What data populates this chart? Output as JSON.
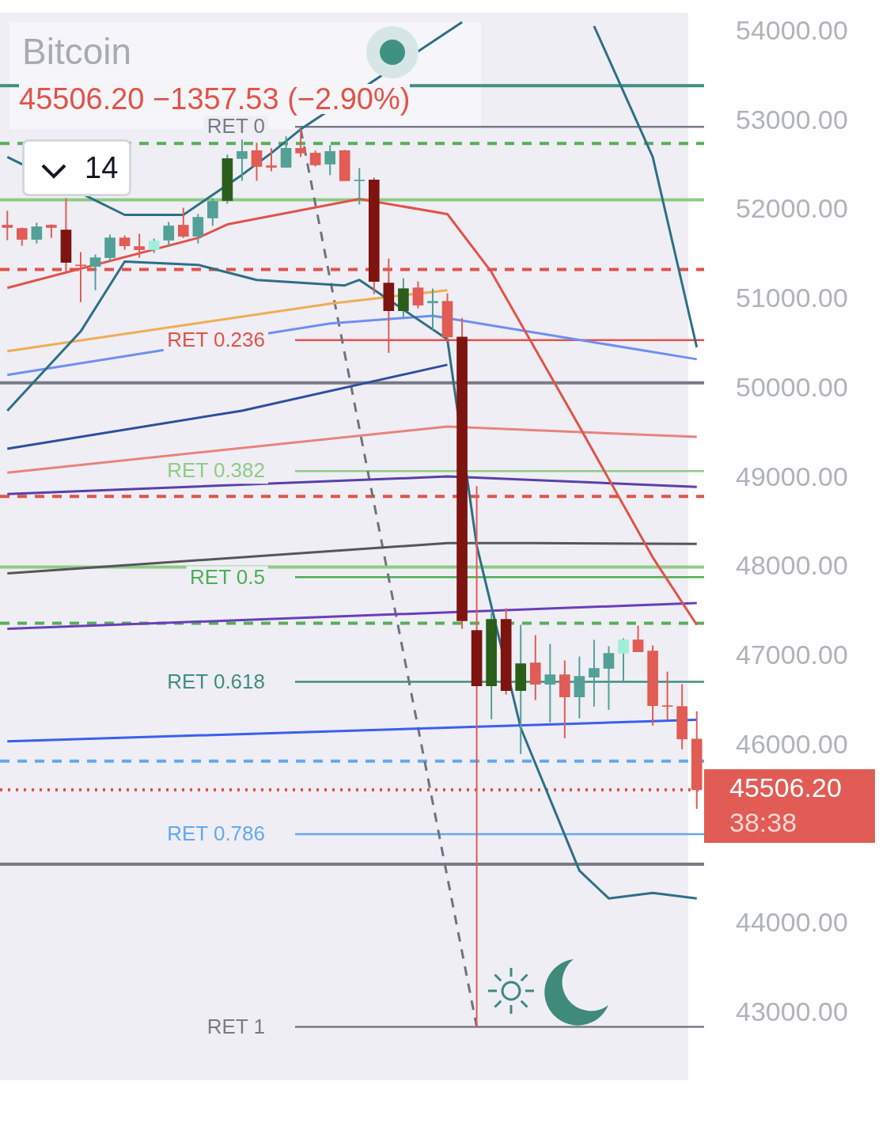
{
  "chart_data": {
    "type": "candlestick",
    "title": "Bitcoin",
    "subtitle": "45506.20 −1357.53 (−2.90%)",
    "categories": [
      null,
      null,
      null,
      null,
      null,
      null,
      null,
      null,
      null,
      null,
      null,
      null,
      null,
      null,
      null,
      null,
      null,
      null,
      null,
      null,
      null,
      null,
      null,
      null,
      null,
      null,
      null,
      null,
      null,
      null,
      null,
      null,
      null,
      null,
      null,
      null,
      null,
      null,
      null,
      null,
      null,
      null,
      null,
      null,
      null,
      null,
      null,
      null
    ],
    "ohlc": [
      [
        51836,
        51996,
        51667,
        51809
      ],
      [
        51800,
        51809,
        51604,
        51676
      ],
      [
        51676,
        51862,
        51631,
        51818
      ],
      [
        51836,
        51844,
        51693,
        51809
      ],
      [
        51782,
        52140,
        51310,
        51418
      ],
      [
        51390,
        51533,
        50973,
        51380
      ],
      [
        51373,
        51507,
        51107,
        51471
      ],
      [
        51471,
        51729,
        51427,
        51693
      ],
      [
        51693,
        51720,
        51560,
        51604
      ],
      [
        51596,
        51738,
        51471,
        51560
      ],
      [
        51560,
        51684,
        51524,
        51658
      ],
      [
        51667,
        51871,
        51596,
        51827
      ],
      [
        51836,
        52031,
        51693,
        51711
      ],
      [
        51711,
        51960,
        51631,
        51924
      ],
      [
        51916,
        52138,
        51827,
        52102
      ],
      [
        52111,
        52627,
        52076,
        52582
      ],
      [
        52582,
        52796,
        52333,
        52662
      ],
      [
        52671,
        52760,
        52333,
        52493
      ],
      [
        52502,
        52698,
        52440,
        52484
      ],
      [
        52484,
        52831,
        52484,
        52698
      ],
      [
        52698,
        52911,
        52600,
        52644
      ],
      [
        52644,
        52671,
        52493,
        52511
      ],
      [
        52520,
        52733,
        52396,
        52662
      ],
      [
        52671,
        52680,
        52333,
        52333
      ],
      [
        52333,
        52476,
        52067,
        52342
      ],
      [
        52342,
        52369,
        51062,
        51204
      ],
      [
        51187,
        51462,
        50404,
        50876
      ],
      [
        50876,
        51240,
        50804,
        51124
      ],
      [
        51133,
        51204,
        50902,
        50938
      ],
      [
        50964,
        51124,
        50662,
        50982
      ],
      [
        50982,
        51071,
        50529,
        50582
      ],
      [
        50582,
        50796,
        47311,
        47400
      ],
      [
        47293,
        48911,
        42849,
        46671
      ],
      [
        46671,
        47489,
        46298,
        47418
      ],
      [
        47418,
        47542,
        46573,
        46618
      ],
      [
        46618,
        47356,
        45907,
        46920
      ],
      [
        46929,
        47240,
        46511,
        46689
      ],
      [
        46689,
        47142,
        46262,
        46796
      ],
      [
        46796,
        46956,
        46084,
        46547
      ],
      [
        46547,
        47000,
        46307,
        46778
      ],
      [
        46769,
        47187,
        46440,
        46867
      ],
      [
        46867,
        47116,
        46404,
        47036
      ],
      [
        47036,
        47204,
        46707,
        47187
      ],
      [
        47187,
        47347,
        47053,
        47053
      ],
      [
        47062,
        47124,
        46227,
        46449
      ],
      [
        46449,
        46831,
        46289,
        46440
      ],
      [
        46440,
        46689,
        45960,
        46076
      ],
      [
        46076,
        46387,
        45293,
        45506.2
      ]
    ],
    "colors": [
      "#e05c54",
      "#e05c54",
      "#53a096",
      "#e05c54",
      "#7d1410",
      "#e05c54",
      "#53a096",
      "#53a096",
      "#e05c54",
      "#e05c54",
      "#9eeeda",
      "#53a096",
      "#e05c54",
      "#53a096",
      "#53a096",
      "#2a5e1a",
      "#53a096",
      "#e05c54",
      "#e05c54",
      "#53a096",
      "#e05c54",
      "#e05c54",
      "#53a096",
      "#e05c54",
      "#53a096",
      "#7d1410",
      "#7d1410",
      "#2a5e1a",
      "#e05c54",
      "#53a096",
      "#e05c54",
      "#7d1410",
      "#7d1410",
      "#2a5e1a",
      "#7d1410",
      "#2a5e1a",
      "#e05c54",
      "#53a096",
      "#e05c54",
      "#53a096",
      "#53a096",
      "#53a096",
      "#9eeeda",
      "#e05c54",
      "#e05c54",
      "#e05c54",
      "#e05c54",
      "#e05c54"
    ],
    "series": [
      {
        "type": "line",
        "color": "#e0534a",
        "values": [
          51133,
          null,
          null,
          null,
          null,
          null,
          null,
          null,
          null,
          null,
          null,
          null,
          null,
          51693,
          null,
          51844,
          null,
          null,
          null,
          null,
          null,
          null,
          null,
          null,
          52129,
          null,
          null,
          null,
          null,
          null,
          51960,
          null,
          null,
          51311,
          null,
          null,
          null,
          null,
          null,
          49578,
          null,
          null,
          null,
          null,
          48111,
          null,
          null,
          47356
        ]
      },
      {
        "type": "line",
        "color": "#2e6f86",
        "values": [
          52600,
          null,
          null,
          null,
          null,
          null,
          null,
          null,
          51951,
          null,
          null,
          null,
          51951,
          null,
          null,
          null,
          52400,
          null,
          52644,
          null,
          52911,
          null,
          null,
          null,
          null,
          null,
          null,
          null,
          null,
          null,
          null,
          54111,
          null,
          null,
          null,
          null,
          null,
          null,
          null,
          null,
          null,
          null,
          null,
          null,
          null,
          null,
          null,
          null
        ]
      },
      {
        "type": "line",
        "color": "#2e6f86",
        "values": [
          null,
          null,
          null,
          null,
          null,
          null,
          null,
          null,
          null,
          null,
          null,
          null,
          null,
          null,
          null,
          null,
          null,
          null,
          null,
          null,
          null,
          null,
          null,
          null,
          null,
          null,
          null,
          null,
          null,
          null,
          null,
          null,
          null,
          null,
          null,
          null,
          null,
          null,
          null,
          null,
          54067,
          null,
          null,
          null,
          52600,
          null,
          null,
          50467
        ]
      },
      {
        "type": "line",
        "color": "#2e6f86",
        "values": [
          49756,
          null,
          null,
          null,
          null,
          50644,
          null,
          null,
          51427,
          null,
          null,
          null,
          null,
          51391,
          null,
          null,
          null,
          51222,
          null,
          null,
          null,
          null,
          null,
          51160,
          51222,
          null,
          null,
          null,
          null,
          null,
          50556,
          null,
          48244,
          null,
          null,
          46200,
          null,
          null,
          null,
          44600,
          null,
          44289,
          null,
          null,
          44351,
          null,
          null,
          44289
        ]
      },
      {
        "type": "line",
        "color": "#f0ad55",
        "values": [
          50422,
          null,
          null,
          null,
          null,
          null,
          null,
          null,
          null,
          null,
          null,
          null,
          null,
          null,
          null,
          null,
          null,
          null,
          null,
          null,
          null,
          null,
          50956,
          null,
          null,
          null,
          null,
          null,
          null,
          null,
          51107,
          null,
          null,
          null,
          null,
          null,
          null,
          null,
          null,
          null,
          null,
          null,
          null,
          null,
          null,
          null,
          null,
          null
        ]
      },
      {
        "type": "line",
        "color": "#6e8ff0",
        "values": [
          50156,
          null,
          null,
          null,
          null,
          null,
          null,
          null,
          null,
          null,
          null,
          null,
          null,
          null,
          null,
          null,
          null,
          null,
          null,
          null,
          null,
          null,
          50733,
          null,
          null,
          null,
          null,
          null,
          null,
          50820,
          null,
          null,
          null,
          null,
          null,
          null,
          null,
          null,
          null,
          null,
          null,
          null,
          null,
          null,
          null,
          null,
          null,
          50333
        ]
      },
      {
        "type": "line",
        "color": "#2f4f9f",
        "values": [
          49329,
          null,
          null,
          null,
          null,
          null,
          null,
          null,
          null,
          null,
          null,
          null,
          null,
          null,
          null,
          null,
          49756,
          null,
          null,
          null,
          null,
          null,
          null,
          null,
          null,
          null,
          null,
          null,
          null,
          null,
          50271,
          null,
          null,
          null,
          null,
          null,
          null,
          null,
          null,
          null,
          null,
          null,
          null,
          null,
          null,
          null,
          null,
          null
        ]
      },
      {
        "type": "line",
        "color": "#e8837a",
        "values": [
          49062,
          null,
          null,
          null,
          null,
          null,
          null,
          null,
          null,
          null,
          null,
          null,
          null,
          null,
          null,
          null,
          null,
          null,
          null,
          null,
          null,
          null,
          null,
          null,
          null,
          null,
          null,
          null,
          null,
          null,
          49578,
          null,
          null,
          null,
          null,
          null,
          null,
          null,
          null,
          null,
          null,
          null,
          null,
          null,
          null,
          null,
          null,
          49462
        ]
      },
      {
        "type": "line",
        "color": "#5b3fa8",
        "values": [
          48822,
          null,
          null,
          null,
          null,
          null,
          null,
          null,
          null,
          null,
          null,
          null,
          null,
          null,
          null,
          null,
          null,
          null,
          null,
          null,
          null,
          null,
          null,
          null,
          null,
          null,
          null,
          null,
          null,
          null,
          49018,
          null,
          null,
          null,
          null,
          null,
          null,
          null,
          null,
          null,
          null,
          null,
          null,
          null,
          null,
          null,
          null,
          48902
        ]
      },
      {
        "type": "line",
        "color": "#55565c",
        "values": [
          47933,
          null,
          null,
          null,
          null,
          null,
          null,
          null,
          null,
          null,
          null,
          null,
          null,
          null,
          null,
          null,
          null,
          null,
          null,
          null,
          null,
          null,
          null,
          null,
          null,
          null,
          null,
          null,
          null,
          null,
          48271,
          null,
          null,
          null,
          null,
          null,
          48271,
          null,
          null,
          null,
          null,
          null,
          null,
          null,
          null,
          null,
          null,
          48262
        ]
      },
      {
        "type": "line",
        "color": "#6a3fb8",
        "values": [
          47311,
          null,
          null,
          null,
          null,
          null,
          null,
          null,
          null,
          null,
          null,
          null,
          null,
          null,
          null,
          null,
          null,
          null,
          null,
          null,
          null,
          null,
          null,
          null,
          null,
          null,
          null,
          null,
          null,
          null,
          null,
          null,
          null,
          null,
          null,
          null,
          null,
          null,
          null,
          null,
          null,
          null,
          null,
          null,
          null,
          null,
          null,
          47600
        ]
      },
      {
        "type": "line",
        "color": "#3a5ff0",
        "values": [
          46049,
          null,
          null,
          null,
          null,
          null,
          null,
          null,
          null,
          null,
          null,
          null,
          null,
          null,
          null,
          null,
          null,
          null,
          null,
          null,
          null,
          null,
          null,
          null,
          null,
          null,
          null,
          null,
          null,
          null,
          null,
          null,
          null,
          null,
          null,
          null,
          null,
          null,
          null,
          null,
          null,
          null,
          null,
          null,
          null,
          null,
          null,
          46290
        ]
      },
      {
        "type": "line",
        "color": "#70737c",
        "line_style": "dashed",
        "values": [
          null,
          null,
          null,
          null,
          null,
          null,
          null,
          null,
          null,
          null,
          null,
          null,
          null,
          null,
          null,
          null,
          null,
          null,
          null,
          null,
          52911,
          null,
          null,
          null,
          null,
          null,
          null,
          null,
          null,
          null,
          null,
          null,
          42849,
          null,
          null,
          null,
          null,
          null,
          null,
          null,
          null,
          null,
          null,
          null,
          null,
          null,
          null,
          null
        ]
      }
    ],
    "ylim": [
      42250,
      54200
    ],
    "yticks": [
      {
        "value": 43000,
        "label": "43000.00"
      },
      {
        "value": 44000,
        "label": "44000.00"
      },
      {
        "value": 46000,
        "label": "46000.00"
      },
      {
        "value": 47000,
        "label": "47000.00"
      },
      {
        "value": 48000,
        "label": "48000.00"
      },
      {
        "value": 49000,
        "label": "49000.00"
      },
      {
        "value": 50000,
        "label": "50000.00"
      },
      {
        "value": 51000,
        "label": "51000.00"
      },
      {
        "value": 52000,
        "label": "52000.00"
      },
      {
        "value": 53000,
        "label": "53000.00"
      },
      {
        "value": 54000,
        "label": "54000.00"
      }
    ],
    "tick_labels": "y",
    "grid": false,
    "legend": false,
    "ref_lines": [
      {
        "axis": "y",
        "value": 53400,
        "label": null,
        "color": "#3e8f80"
      },
      {
        "axis": "y",
        "value": 52938,
        "label": "RET 0",
        "color": "#787b86"
      },
      {
        "axis": "y",
        "value": 52751,
        "label": null,
        "color": "#5aad5a",
        "line_style": "dashed"
      },
      {
        "axis": "y",
        "value": 52120,
        "label": null,
        "color": "#8fcb85"
      },
      {
        "axis": "y",
        "value": 51338,
        "label": null,
        "color": "#e0534a",
        "line_style": "dashed"
      },
      {
        "axis": "y",
        "value": 50547,
        "label": "RET 0.236",
        "color": "#e0534a"
      },
      {
        "axis": "y",
        "value": 50067,
        "label": null,
        "color": "#787b86"
      },
      {
        "axis": "y",
        "value": 49080,
        "label": "RET 0.382",
        "color": "#8fcb85"
      },
      {
        "axis": "y",
        "value": 48796,
        "label": null,
        "color": "#e0534a",
        "line_style": "dashed"
      },
      {
        "axis": "y",
        "value": 48004,
        "label": null,
        "color": "#8fcb85"
      },
      {
        "axis": "y",
        "value": 47889,
        "label": "RET 0.5",
        "color": "#4caf50"
      },
      {
        "axis": "y",
        "value": 47373,
        "label": null,
        "color": "#5aad5a",
        "line_style": "dashed"
      },
      {
        "axis": "y",
        "value": 46716,
        "label": "RET 0.618",
        "color": "#3e8f80"
      },
      {
        "axis": "y",
        "value": 45827,
        "label": null,
        "color": "#64a8ee",
        "line_style": "dashed"
      },
      {
        "axis": "y",
        "value": 45506.2,
        "label": null,
        "color": "#e0534a",
        "line_style": "dotted"
      },
      {
        "axis": "y",
        "value": 45009,
        "label": "RET 0.786",
        "color": "#64a8ee"
      },
      {
        "axis": "y",
        "value": 44671,
        "label": null,
        "color": "#787b86"
      },
      {
        "axis": "y",
        "value": 42849,
        "label": "RET 1",
        "color": "#787b86"
      }
    ],
    "annotations": [
      "45506.20",
      "38:38",
      "14"
    ]
  }
}
